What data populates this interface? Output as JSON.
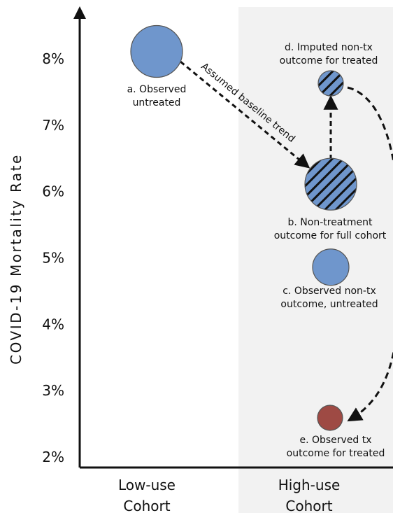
{
  "chart_data": {
    "type": "scatter",
    "ylabel": "COVID-19 Mortality Rate",
    "y_ticks": [
      "2%",
      "3%",
      "4%",
      "5%",
      "6%",
      "7%",
      "8%"
    ],
    "ylim": [
      2,
      8.5
    ],
    "categories": [
      "Low-use\nCohort",
      "High-use\nCohort"
    ],
    "highlight_region": "High-use Cohort",
    "points": [
      {
        "label": "a. Observed\nuntreated",
        "category": "Low-use Cohort",
        "y": 8.1,
        "size": "large",
        "fill": "#6f96cc",
        "hatched": false
      },
      {
        "label": "b. Non-treatment\noutcome for full cohort",
        "category": "High-use Cohort",
        "y": 6.1,
        "size": "large",
        "fill": "#6f96cc",
        "hatched": true
      },
      {
        "label": "c. Observed non-tx\noutcome, untreated",
        "category": "High-use Cohort",
        "y": 4.85,
        "size": "medium",
        "fill": "#6f96cc",
        "hatched": false
      },
      {
        "label": "d. Imputed non-tx\noutcome for treated",
        "category": "High-use Cohort",
        "y": 7.62,
        "size": "small",
        "fill": "#6f96cc",
        "hatched": true
      },
      {
        "label": "e. Observed tx\noutcome for treated",
        "category": "High-use Cohort",
        "y": 2.58,
        "size": "small",
        "fill": "#9e4a44",
        "hatched": false
      }
    ],
    "arrows": [
      {
        "from": "a",
        "to": "b",
        "label": "Assumed baseline trend",
        "style": "dashed"
      },
      {
        "from": "b",
        "to": "d",
        "label": "",
        "style": "dashed"
      },
      {
        "from": "d",
        "to": "e",
        "label": "",
        "style": "dashed-curve"
      }
    ],
    "colors": {
      "untreated": "#6f96cc",
      "treated": "#9e4a44",
      "shade": "#f2f2f2"
    }
  }
}
